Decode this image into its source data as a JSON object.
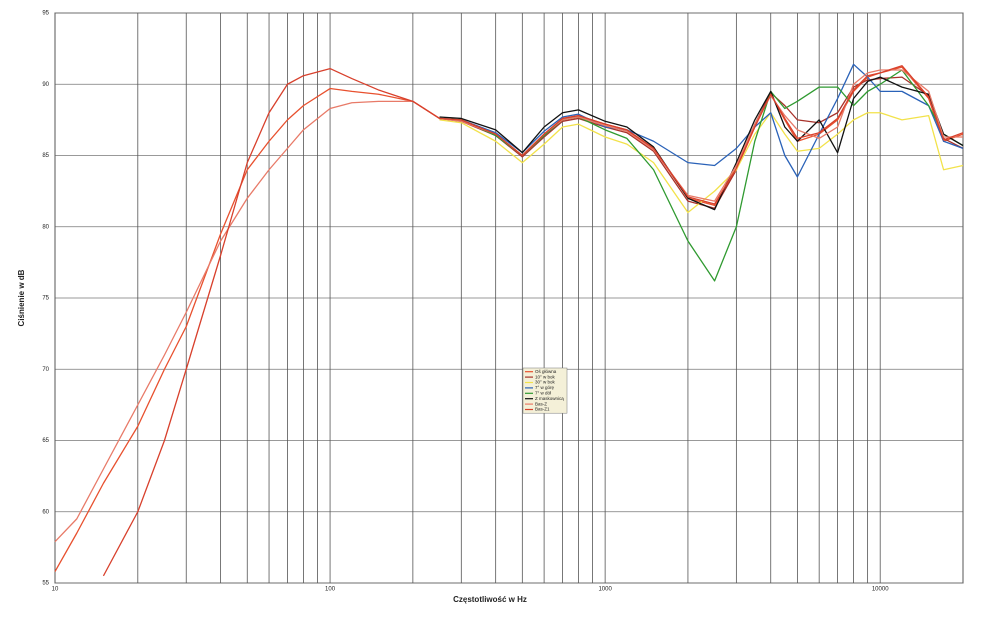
{
  "chart_data": {
    "type": "line",
    "x_label": "Częstotliwość w Hz",
    "y_label": "Ciśnienie w dB",
    "xscale": "log",
    "grid": true,
    "xlim": [
      10,
      20000
    ],
    "ylim": [
      55,
      95
    ],
    "xticks": [
      10,
      100,
      1000,
      10000
    ],
    "xgrid_minor": [
      20,
      30,
      40,
      50,
      60,
      70,
      80,
      90,
      200,
      300,
      400,
      500,
      600,
      700,
      800,
      900,
      2000,
      3000,
      4000,
      5000,
      6000,
      7000,
      8000,
      9000,
      20000
    ],
    "yticks": [
      55,
      60,
      65,
      70,
      75,
      80,
      85,
      90,
      95
    ],
    "legend": "center",
    "x": [
      10,
      12,
      15,
      20,
      25,
      30,
      40,
      50,
      60,
      70,
      80,
      100,
      120,
      150,
      200,
      250,
      300,
      400,
      500,
      600,
      700,
      800,
      1000,
      1200,
      1500,
      2000,
      2500,
      3000,
      3500,
      4000,
      4500,
      5000,
      6000,
      7000,
      8000,
      9000,
      10000,
      12000,
      15000,
      17000,
      20000
    ],
    "series": [
      {
        "name": "Oś główna",
        "color": "#e8502e",
        "values": [
          55.8,
          58.5,
          62,
          66,
          70,
          73,
          79.5,
          84,
          86,
          87.5,
          88.5,
          89.7,
          89.5,
          89.3,
          88.8,
          87.6,
          87.5,
          86.5,
          85,
          86.5,
          87.6,
          87.8,
          87.2,
          86.8,
          85.5,
          82,
          81.5,
          84,
          87,
          89.3,
          87.5,
          86,
          86.5,
          87.5,
          89.5,
          90.5,
          90.8,
          91.2,
          89,
          86,
          86.5
        ]
      },
      {
        "name": "10° w bok",
        "color": "#a8322a",
        "values": [
          null,
          null,
          null,
          null,
          null,
          null,
          null,
          null,
          null,
          null,
          null,
          null,
          null,
          null,
          null,
          87.6,
          87.4,
          86.4,
          84.9,
          86.3,
          87.4,
          87.6,
          87,
          86.6,
          85.3,
          81.8,
          81.3,
          84,
          87.2,
          89.4,
          88.5,
          87.5,
          87.3,
          88,
          89.8,
          90.3,
          90.4,
          90.5,
          89.2,
          86.2,
          85.5
        ]
      },
      {
        "name": "30° w bok",
        "color": "#f2e24a",
        "values": [
          null,
          null,
          null,
          null,
          null,
          null,
          null,
          null,
          null,
          null,
          null,
          null,
          null,
          null,
          null,
          87.5,
          87.3,
          86,
          84.5,
          85.8,
          87,
          87.2,
          86.3,
          85.8,
          84.5,
          81,
          82.5,
          84,
          86.5,
          88,
          86.5,
          85.3,
          85.5,
          86.5,
          87.5,
          88,
          88,
          87.5,
          87.8,
          84,
          84.3
        ]
      },
      {
        "name": "7° w górę",
        "color": "#2a62b8",
        "values": [
          null,
          null,
          null,
          null,
          null,
          null,
          null,
          null,
          null,
          null,
          null,
          null,
          null,
          null,
          null,
          87.6,
          87.5,
          86.6,
          85.2,
          86.7,
          87.7,
          87.9,
          87,
          86.8,
          86,
          84.5,
          84.3,
          85.5,
          87,
          88,
          85,
          83.5,
          86.5,
          89,
          91.4,
          90.5,
          89.5,
          89.5,
          88.5,
          86,
          85.5
        ]
      },
      {
        "name": "7° w dół",
        "color": "#2f9a30",
        "values": [
          null,
          null,
          null,
          null,
          null,
          null,
          null,
          null,
          null,
          null,
          null,
          null,
          null,
          null,
          null,
          87.6,
          87.5,
          86.4,
          85,
          86.4,
          87.5,
          87.7,
          86.8,
          86.2,
          84,
          79,
          76.2,
          80,
          86,
          89.5,
          88.3,
          88.8,
          89.8,
          89.8,
          88.5,
          89.5,
          90,
          91,
          88.5,
          86.5,
          85.7
        ]
      },
      {
        "name": "Z maskownicą",
        "color": "#111111",
        "values": [
          null,
          null,
          null,
          null,
          null,
          null,
          null,
          null,
          null,
          null,
          null,
          null,
          null,
          null,
          null,
          87.7,
          87.6,
          86.8,
          85.2,
          87,
          88,
          88.2,
          87.4,
          87,
          85.6,
          82,
          81.2,
          84.5,
          87.5,
          89.5,
          87,
          86,
          87.5,
          85.2,
          89,
          90.2,
          90.5,
          89.8,
          89.3,
          86.5,
          85.7
        ]
      },
      {
        "name": "Bas-Z",
        "color": "#e87a68",
        "values": [
          57.9,
          59.5,
          63,
          67.5,
          71,
          74,
          79,
          82,
          84,
          85.5,
          86.8,
          88.3,
          88.7,
          88.8,
          88.8,
          87.6,
          87.4,
          86.5,
          85,
          86.5,
          87.5,
          87.7,
          87.1,
          86.7,
          85.4,
          82.2,
          81.8,
          84.3,
          87.2,
          89.2,
          87.8,
          86.8,
          86.2,
          87,
          90,
          90.8,
          91,
          91,
          89.5,
          86.3,
          86.3
        ]
      },
      {
        "name": "Bas-Z1",
        "color": "#d8402c",
        "values": [
          null,
          null,
          55.5,
          60,
          65,
          70,
          78,
          84.5,
          88,
          90,
          90.6,
          91.1,
          90.4,
          89.6,
          88.8,
          87.6,
          87.5,
          86.5,
          85,
          86.5,
          87.6,
          87.8,
          87.2,
          86.8,
          85.5,
          82.1,
          81.6,
          84.1,
          87,
          89.3,
          87.6,
          86.2,
          86.6,
          87.6,
          89.6,
          90.6,
          90.8,
          91.3,
          89.1,
          86.1,
          86.6
        ]
      }
    ]
  }
}
